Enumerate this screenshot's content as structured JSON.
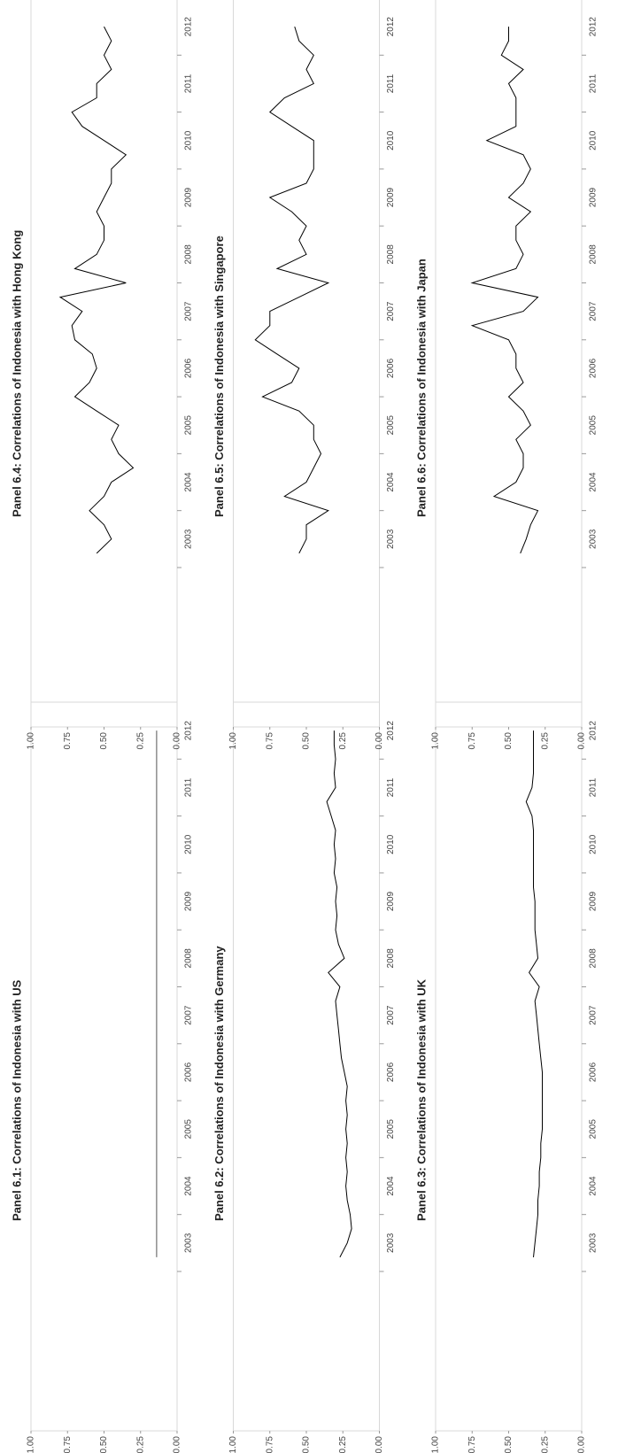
{
  "chart_data": [
    {
      "type": "line",
      "title": "Panel 6.1: Correlations of Indonesia with US",
      "x": [
        2003.25,
        2012.5
      ],
      "values": [
        0.14,
        0.14
      ],
      "color": "#555555",
      "xlim": [
        2000.2,
        2013
      ],
      "xticks": [
        2003,
        2004,
        2005,
        2006,
        2007,
        2008,
        2009,
        2010,
        2011,
        2012
      ],
      "ylim": [
        0,
        1
      ],
      "yticks": [
        {
          "value": 0,
          "label": "0.00"
        },
        {
          "value": 0.25,
          "label": "0.25"
        },
        {
          "value": 0.5,
          "label": "0.50"
        },
        {
          "value": 0.75,
          "label": "0.75"
        },
        {
          "value": 1,
          "label": "1.00"
        }
      ]
    },
    {
      "type": "line",
      "title": "Panel 6.2: Correlations of Indonesia with Germany",
      "x": [
        2003.25,
        2003.5,
        2003.75,
        2004,
        2004.25,
        2004.5,
        2004.75,
        2005,
        2005.25,
        2005.5,
        2005.75,
        2006,
        2006.25,
        2006.5,
        2006.75,
        2007,
        2007.25,
        2007.5,
        2007.75,
        2008,
        2008.25,
        2008.5,
        2008.75,
        2009,
        2009.25,
        2009.5,
        2009.75,
        2010,
        2010.25,
        2010.5,
        2010.75,
        2011,
        2011.25,
        2011.5,
        2011.75,
        2012,
        2012.25,
        2012.5
      ],
      "values": [
        0.27,
        0.22,
        0.19,
        0.2,
        0.22,
        0.23,
        0.22,
        0.23,
        0.22,
        0.23,
        0.22,
        0.23,
        0.22,
        0.24,
        0.26,
        0.27,
        0.28,
        0.29,
        0.3,
        0.27,
        0.35,
        0.24,
        0.28,
        0.3,
        0.29,
        0.3,
        0.29,
        0.31,
        0.3,
        0.31,
        0.3,
        0.33,
        0.36,
        0.3,
        0.31,
        0.3,
        0.31,
        0.31
      ],
      "color": "#000000",
      "xlim": [
        2000.2,
        2013
      ],
      "xticks": [
        2003,
        2004,
        2005,
        2006,
        2007,
        2008,
        2009,
        2010,
        2011,
        2012
      ],
      "ylim": [
        0,
        1
      ],
      "yticks": [
        {
          "value": 0,
          "label": "0.00"
        },
        {
          "value": 0.25,
          "label": "0.25"
        },
        {
          "value": 0.5,
          "label": "0.50"
        },
        {
          "value": 0.75,
          "label": "0.75"
        },
        {
          "value": 1,
          "label": "1.00"
        }
      ]
    },
    {
      "type": "line",
      "title": "Panel 6.3: Correlations of Indonesia with UK",
      "x": [
        2003.25,
        2003.5,
        2003.75,
        2004,
        2004.25,
        2004.5,
        2004.75,
        2005,
        2005.25,
        2005.5,
        2005.75,
        2006,
        2006.25,
        2006.5,
        2006.75,
        2007,
        2007.25,
        2007.5,
        2007.75,
        2008,
        2008.25,
        2008.5,
        2008.75,
        2009,
        2009.25,
        2009.5,
        2009.75,
        2010,
        2010.25,
        2010.5,
        2010.75,
        2011,
        2011.25,
        2011.5,
        2011.75,
        2012,
        2012.25,
        2012.5
      ],
      "values": [
        0.33,
        0.32,
        0.31,
        0.3,
        0.3,
        0.29,
        0.29,
        0.28,
        0.28,
        0.27,
        0.27,
        0.27,
        0.27,
        0.27,
        0.28,
        0.29,
        0.3,
        0.31,
        0.32,
        0.29,
        0.36,
        0.3,
        0.31,
        0.32,
        0.32,
        0.32,
        0.33,
        0.33,
        0.33,
        0.33,
        0.33,
        0.34,
        0.38,
        0.34,
        0.33,
        0.33,
        0.33,
        0.33
      ],
      "color": "#000000",
      "xlim": [
        2000.2,
        2013
      ],
      "xticks": [
        2003,
        2004,
        2005,
        2006,
        2007,
        2008,
        2009,
        2010,
        2011,
        2012
      ],
      "ylim": [
        0,
        1
      ],
      "yticks": [
        {
          "value": 0,
          "label": "0.00"
        },
        {
          "value": 0.25,
          "label": "0.25"
        },
        {
          "value": 0.5,
          "label": "0.50"
        },
        {
          "value": 0.75,
          "label": "0.75"
        },
        {
          "value": 1,
          "label": "1.00"
        }
      ]
    },
    {
      "type": "line",
      "title": "Panel 6.4: Correlations of Indonesia with Hong Kong",
      "x": [
        2003.25,
        2003.5,
        2003.75,
        2004,
        2004.25,
        2004.5,
        2004.75,
        2005,
        2005.25,
        2005.5,
        2005.75,
        2006,
        2006.25,
        2006.5,
        2006.75,
        2007,
        2007.25,
        2007.5,
        2007.75,
        2008,
        2008.25,
        2008.5,
        2008.75,
        2009,
        2009.25,
        2009.5,
        2009.75,
        2010,
        2010.25,
        2010.5,
        2010.75,
        2011,
        2011.25,
        2011.5,
        2011.75,
        2012,
        2012.25,
        2012.5
      ],
      "values": [
        0.55,
        0.45,
        0.5,
        0.6,
        0.5,
        0.45,
        0.3,
        0.4,
        0.45,
        0.4,
        0.55,
        0.7,
        0.6,
        0.55,
        0.58,
        0.7,
        0.72,
        0.65,
        0.8,
        0.35,
        0.7,
        0.55,
        0.5,
        0.5,
        0.55,
        0.5,
        0.45,
        0.45,
        0.35,
        0.5,
        0.65,
        0.72,
        0.55,
        0.55,
        0.45,
        0.5,
        0.45,
        0.5
      ],
      "color": "#000000",
      "xlim": [
        2000.2,
        2013
      ],
      "xticks": [
        2003,
        2004,
        2005,
        2006,
        2007,
        2008,
        2009,
        2010,
        2011,
        2012
      ],
      "ylim": [
        0,
        1
      ],
      "yticks": [
        {
          "value": 0,
          "label": "0.00"
        },
        {
          "value": 0.25,
          "label": "0.25"
        },
        {
          "value": 0.5,
          "label": "0.50"
        },
        {
          "value": 0.75,
          "label": "0.75"
        },
        {
          "value": 1,
          "label": "1.00"
        }
      ]
    },
    {
      "type": "line",
      "title": "Panel 6.5: Correlations of Indonesia with Singapore",
      "x": [
        2003.25,
        2003.5,
        2003.75,
        2004,
        2004.25,
        2004.5,
        2004.75,
        2005,
        2005.25,
        2005.5,
        2005.75,
        2006,
        2006.25,
        2006.5,
        2006.75,
        2007,
        2007.25,
        2007.5,
        2007.75,
        2008,
        2008.25,
        2008.5,
        2008.75,
        2009,
        2009.25,
        2009.5,
        2009.75,
        2010,
        2010.25,
        2010.5,
        2010.75,
        2011,
        2011.25,
        2011.5,
        2011.75,
        2012,
        2012.25,
        2012.5
      ],
      "values": [
        0.55,
        0.5,
        0.5,
        0.35,
        0.65,
        0.5,
        0.45,
        0.4,
        0.45,
        0.45,
        0.55,
        0.8,
        0.6,
        0.55,
        0.7,
        0.85,
        0.75,
        0.75,
        0.55,
        0.35,
        0.7,
        0.5,
        0.55,
        0.5,
        0.6,
        0.75,
        0.5,
        0.45,
        0.45,
        0.45,
        0.6,
        0.75,
        0.65,
        0.45,
        0.5,
        0.45,
        0.55,
        0.58
      ],
      "color": "#000000",
      "xlim": [
        2000.2,
        2013
      ],
      "xticks": [
        2003,
        2004,
        2005,
        2006,
        2007,
        2008,
        2009,
        2010,
        2011,
        2012
      ],
      "ylim": [
        0,
        1
      ],
      "yticks": [
        {
          "value": 0,
          "label": "0.00"
        },
        {
          "value": 0.25,
          "label": "0.25"
        },
        {
          "value": 0.5,
          "label": "0.50"
        },
        {
          "value": 0.75,
          "label": "0.75"
        },
        {
          "value": 1,
          "label": "1.00"
        }
      ]
    },
    {
      "type": "line",
      "title": "Panel 6.6: Correlations of Indonesia with Japan",
      "x": [
        2003.25,
        2003.5,
        2003.75,
        2004,
        2004.25,
        2004.5,
        2004.75,
        2005,
        2005.25,
        2005.5,
        2005.75,
        2006,
        2006.25,
        2006.5,
        2006.75,
        2007,
        2007.25,
        2007.5,
        2007.75,
        2008,
        2008.25,
        2008.5,
        2008.75,
        2009,
        2009.25,
        2009.5,
        2009.75,
        2010,
        2010.25,
        2010.5,
        2010.75,
        2011,
        2011.25,
        2011.5,
        2011.75,
        2012,
        2012.25,
        2012.5
      ],
      "values": [
        0.42,
        0.38,
        0.35,
        0.3,
        0.6,
        0.45,
        0.4,
        0.4,
        0.45,
        0.35,
        0.4,
        0.5,
        0.4,
        0.45,
        0.45,
        0.5,
        0.75,
        0.4,
        0.3,
        0.75,
        0.45,
        0.4,
        0.45,
        0.45,
        0.35,
        0.5,
        0.4,
        0.35,
        0.4,
        0.65,
        0.45,
        0.45,
        0.45,
        0.5,
        0.4,
        0.55,
        0.5,
        0.5
      ],
      "color": "#000000",
      "xlim": [
        2000.2,
        2013
      ],
      "xticks": [
        2003,
        2004,
        2005,
        2006,
        2007,
        2008,
        2009,
        2010,
        2011,
        2012
      ],
      "ylim": [
        0,
        1
      ],
      "yticks": [
        {
          "value": 0,
          "label": "0.00"
        },
        {
          "value": 0.25,
          "label": "0.25"
        },
        {
          "value": 0.5,
          "label": "0.50"
        },
        {
          "value": 0.75,
          "label": "0.75"
        },
        {
          "value": 1,
          "label": "1.00"
        }
      ]
    }
  ]
}
